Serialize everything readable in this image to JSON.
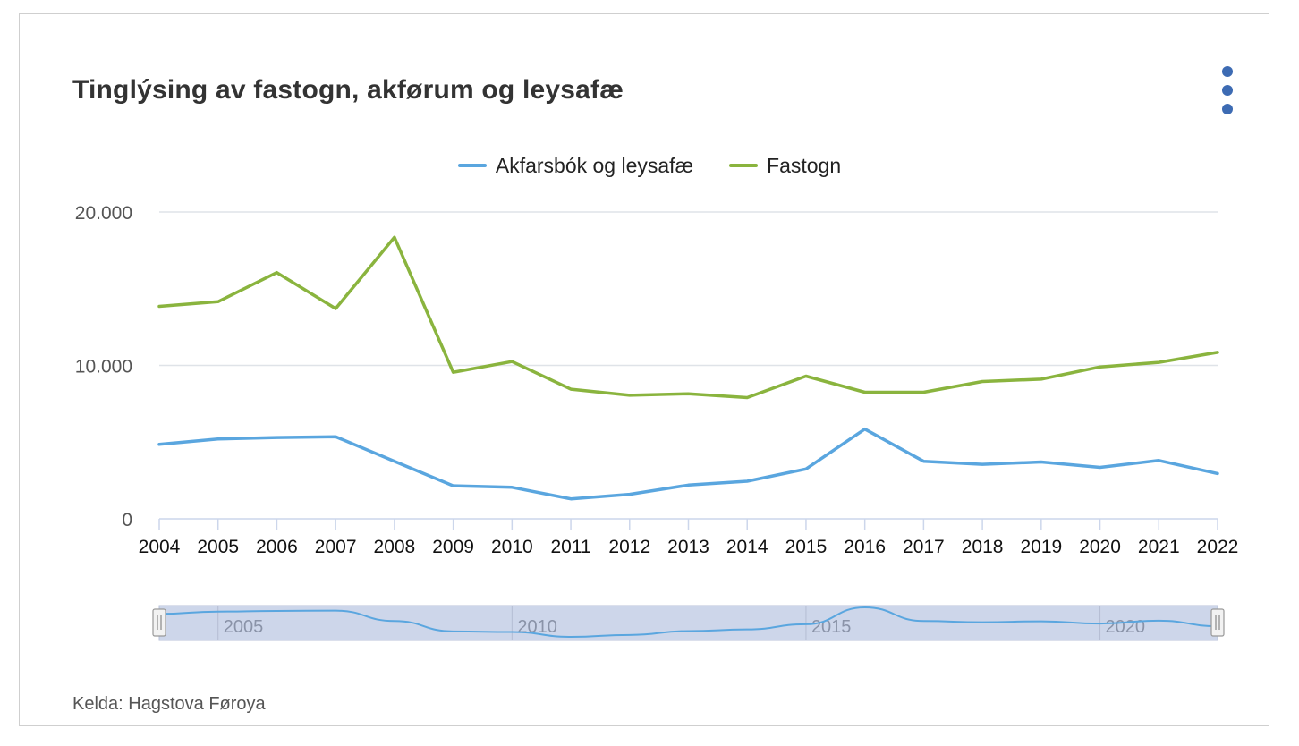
{
  "title": "Tinglýsing av fastogn, akførum og leysafæ",
  "source": "Kelda: Hagstova Føroya",
  "menu_icon": "hamburger-dots-icon",
  "chart_data": {
    "type": "line",
    "title": "Tinglýsing av fastogn, akførum og leysafæ",
    "xlabel": "",
    "ylabel": "",
    "x": [
      "2004",
      "2005",
      "2006",
      "2007",
      "2008",
      "2009",
      "2010",
      "2011",
      "2012",
      "2013",
      "2014",
      "2015",
      "2016",
      "2017",
      "2018",
      "2019",
      "2020",
      "2021",
      "2022"
    ],
    "series": [
      {
        "name": "Akfarsbók og leysafæ",
        "color": "#5aa6df",
        "values": [
          4850,
          5200,
          5300,
          5350,
          3750,
          2150,
          2050,
          1300,
          1600,
          2200,
          2450,
          3250,
          5850,
          3750,
          3550,
          3700,
          3350,
          3800,
          2950
        ]
      },
      {
        "name": "Fastogn",
        "color": "#8ab43e",
        "values": [
          13850,
          14150,
          16050,
          13700,
          18350,
          9550,
          10250,
          8450,
          8050,
          8150,
          7900,
          9300,
          8250,
          8250,
          8950,
          9100,
          9900,
          10200,
          10850
        ]
      }
    ],
    "ylim": [
      0,
      20000
    ],
    "yticks": [
      "0",
      "10.000",
      "20.000"
    ],
    "ytick_values": [
      0,
      10000,
      20000
    ],
    "grid": true,
    "legend": "top-center",
    "navigator": {
      "ticks": [
        "2005",
        "2010",
        "2015",
        "2020"
      ],
      "range": [
        "2004",
        "2022"
      ]
    }
  }
}
